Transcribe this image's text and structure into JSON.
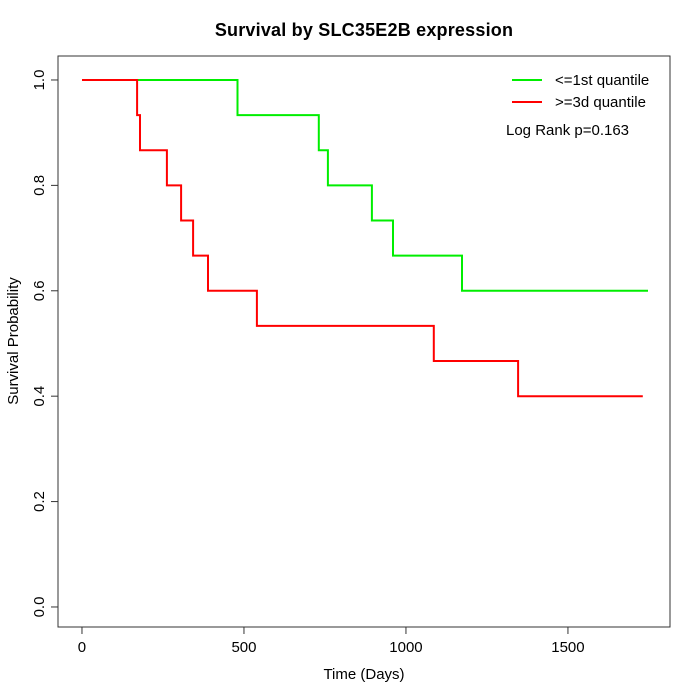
{
  "chart_data": {
    "type": "line",
    "variant": "kaplan-meier-step",
    "title": "Survival by SLC35E2B expression",
    "xlabel": "Time (Days)",
    "ylabel": "Survival Probability",
    "x_ticks": [
      0,
      500,
      1000,
      1500
    ],
    "y_ticks": [
      {
        "label": "0.0",
        "value": 0.0
      },
      {
        "label": "0.2",
        "value": 0.2
      },
      {
        "label": "0.4",
        "value": 0.4
      },
      {
        "label": "0.6",
        "value": 0.6
      },
      {
        "label": "0.8",
        "value": 0.8
      },
      {
        "label": "1.0",
        "value": 1.0
      }
    ],
    "xlim": [
      -74,
      1815
    ],
    "ylim": [
      -0.038,
      1.0455
    ],
    "grid": false,
    "legend_position": "topright",
    "annotation": "Log Rank p=0.163",
    "axis_color": "#333333",
    "text_color": "#000000",
    "line_width": 2,
    "series": [
      {
        "name": "<=1st quantile",
        "color": "#00ee00",
        "points": [
          [
            0,
            1.0
          ],
          [
            480,
            0.9333
          ],
          [
            731,
            0.8667
          ],
          [
            759,
            0.8
          ],
          [
            895,
            0.7333
          ],
          [
            960,
            0.6667
          ],
          [
            1173,
            0.6
          ],
          [
            1747,
            0.6
          ]
        ]
      },
      {
        "name": ">=3d quantile",
        "color": "#ff0000",
        "points": [
          [
            0,
            1.0
          ],
          [
            170,
            0.9333
          ],
          [
            179,
            0.8667
          ],
          [
            262,
            0.8
          ],
          [
            306,
            0.7333
          ],
          [
            343,
            0.6667
          ],
          [
            389,
            0.6
          ],
          [
            540,
            0.5333
          ],
          [
            1086,
            0.4667
          ],
          [
            1346,
            0.4
          ],
          [
            1731,
            0.4
          ]
        ]
      }
    ]
  }
}
